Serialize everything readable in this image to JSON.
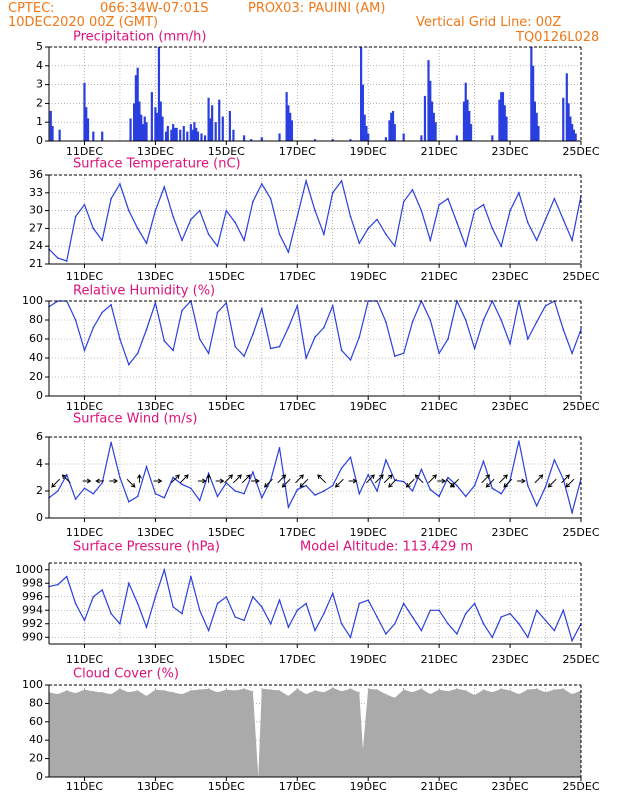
{
  "header": {
    "line1_left": "CPTEC:",
    "line1_coords": "066:34W-07:01S",
    "line1_station": "PROX03: PAUINI (AM)",
    "line2_left": "10DEC2020 00Z (GMT)",
    "line2_right": "Vertical Grid Line: 00Z",
    "line3_right": "TQ0126L028"
  },
  "colors": {
    "header": "#f07818",
    "title": "#e0107a",
    "series": "#2a3fe0",
    "cloud": "#aaaaaa",
    "grid": "#888888"
  },
  "x_tick_labels": [
    "11DEC",
    "13DEC",
    "15DEC",
    "17DEC",
    "19DEC",
    "21DEC",
    "23DEC",
    "25DEC"
  ],
  "chart_data": [
    {
      "type": "bar",
      "title": "Precipitation (mm/h)",
      "ylim": [
        0,
        5
      ],
      "yticks": [
        0,
        1,
        2,
        3,
        4,
        5
      ],
      "x": [
        10.05,
        10.1,
        10.3,
        11.0,
        11.05,
        11.1,
        11.25,
        11.5,
        12.3,
        12.4,
        12.45,
        12.5,
        12.55,
        12.6,
        12.65,
        12.7,
        12.75,
        12.9,
        13.0,
        13.05,
        13.1,
        13.15,
        13.2,
        13.3,
        13.35,
        13.45,
        13.5,
        13.55,
        13.6,
        13.7,
        13.8,
        13.9,
        14.0,
        14.05,
        14.1,
        14.15,
        14.2,
        14.3,
        14.4,
        14.5,
        14.55,
        14.6,
        14.7,
        14.8,
        14.9,
        15.1,
        15.2,
        15.5,
        15.7,
        16.0,
        16.5,
        16.7,
        16.75,
        16.8,
        16.85,
        17.5,
        18.0,
        18.5,
        18.8,
        18.85,
        18.9,
        18.95,
        19.0,
        19.5,
        19.6,
        19.65,
        19.7,
        19.75,
        20.0,
        20.5,
        20.6,
        20.7,
        20.75,
        20.8,
        20.85,
        20.9,
        21.5,
        21.7,
        21.75,
        21.8,
        21.85,
        21.9,
        22.5,
        22.7,
        22.75,
        22.8,
        22.85,
        22.9,
        23.6,
        23.65,
        23.7,
        23.75,
        23.8,
        24.5,
        24.6,
        24.65,
        24.7,
        24.75,
        24.8,
        24.85
      ],
      "values": [
        1.6,
        0.8,
        0.6,
        3.1,
        1.8,
        1.2,
        0.5,
        0.5,
        1.2,
        2.0,
        3.5,
        3.9,
        2.1,
        1.4,
        0.9,
        1.3,
        1.0,
        2.6,
        1.8,
        1.5,
        5.0,
        2.1,
        1.3,
        0.5,
        0.8,
        0.6,
        0.9,
        0.7,
        0.7,
        0.6,
        0.8,
        0.5,
        0.9,
        0.6,
        1.0,
        0.7,
        0.5,
        0.4,
        0.3,
        2.3,
        1.2,
        1.9,
        1.0,
        2.2,
        1.3,
        1.6,
        0.6,
        0.3,
        0.1,
        0.2,
        0.4,
        2.6,
        1.9,
        1.5,
        1.1,
        0.1,
        0.1,
        0.1,
        5.0,
        3.0,
        1.4,
        0.8,
        0.4,
        0.2,
        1.1,
        1.5,
        1.6,
        0.9,
        0.4,
        0.3,
        2.4,
        4.3,
        3.2,
        2.1,
        1.5,
        1.0,
        0.3,
        2.1,
        3.1,
        2.2,
        1.6,
        0.9,
        0.3,
        2.2,
        2.6,
        2.6,
        1.9,
        1.3,
        5.0,
        4.0,
        2.1,
        1.5,
        0.8,
        2.3,
        3.6,
        2.0,
        1.3,
        0.9,
        0.6,
        0.4
      ],
      "xlim": [
        10.0,
        25.0
      ]
    },
    {
      "type": "line",
      "title": "Surface Temperature (nC)",
      "ylim": [
        21,
        36
      ],
      "yticks": [
        21,
        24,
        27,
        30,
        33,
        36
      ],
      "x": [
        10.0,
        10.25,
        10.5,
        10.75,
        11.0,
        11.25,
        11.5,
        11.75,
        12.0,
        12.25,
        12.5,
        12.75,
        13.0,
        13.25,
        13.5,
        13.75,
        14.0,
        14.25,
        14.5,
        14.75,
        15.0,
        15.25,
        15.5,
        15.75,
        16.0,
        16.25,
        16.5,
        16.75,
        17.0,
        17.25,
        17.5,
        17.75,
        18.0,
        18.25,
        18.5,
        18.75,
        19.0,
        19.25,
        19.5,
        19.75,
        20.0,
        20.25,
        20.5,
        20.75,
        21.0,
        21.25,
        21.5,
        21.75,
        22.0,
        22.25,
        22.5,
        22.75,
        23.0,
        23.25,
        23.5,
        23.75,
        24.0,
        24.25,
        24.5,
        24.75,
        25.0
      ],
      "values": [
        23.5,
        22.0,
        21.5,
        29.0,
        31.0,
        27.0,
        25.0,
        32.0,
        34.5,
        30.0,
        27.0,
        24.5,
        30.0,
        34.0,
        29.0,
        25.0,
        28.5,
        30.0,
        26.0,
        24.0,
        30.0,
        28.0,
        25.0,
        31.5,
        34.5,
        32.0,
        26.0,
        23.0,
        29.0,
        35.0,
        30.0,
        26.0,
        33.0,
        35.0,
        29.0,
        24.5,
        27.0,
        28.5,
        26.0,
        24.0,
        31.5,
        33.5,
        30.0,
        25.0,
        31.0,
        32.0,
        28.0,
        24.0,
        30.0,
        31.0,
        27.0,
        24.0,
        30.0,
        33.0,
        28.0,
        25.0,
        28.5,
        32.0,
        28.5,
        25.0,
        32.5
      ],
      "xlim": [
        10.0,
        25.0
      ]
    },
    {
      "type": "line",
      "title": "Relative Humidity (%)",
      "ylim": [
        0,
        100
      ],
      "yticks": [
        0,
        20,
        40,
        60,
        80,
        100
      ],
      "x": [
        10.0,
        10.25,
        10.5,
        10.75,
        11.0,
        11.25,
        11.5,
        11.75,
        12.0,
        12.25,
        12.5,
        12.75,
        13.0,
        13.25,
        13.5,
        13.75,
        14.0,
        14.25,
        14.5,
        14.75,
        15.0,
        15.25,
        15.5,
        15.75,
        16.0,
        16.25,
        16.5,
        16.75,
        17.0,
        17.25,
        17.5,
        17.75,
        18.0,
        18.25,
        18.5,
        18.75,
        19.0,
        19.25,
        19.5,
        19.75,
        20.0,
        20.25,
        20.5,
        20.75,
        21.0,
        21.25,
        21.5,
        21.75,
        22.0,
        22.25,
        22.5,
        22.75,
        23.0,
        23.25,
        23.5,
        23.75,
        24.0,
        24.25,
        24.5,
        24.75,
        25.0
      ],
      "values": [
        94,
        100,
        100,
        80,
        48,
        72,
        88,
        96,
        60,
        33,
        45,
        70,
        98,
        58,
        48,
        90,
        100,
        60,
        45,
        88,
        98,
        52,
        42,
        65,
        92,
        50,
        52,
        72,
        95,
        40,
        62,
        72,
        95,
        48,
        38,
        62,
        100,
        100,
        78,
        42,
        45,
        78,
        100,
        80,
        45,
        60,
        100,
        80,
        50,
        80,
        100,
        80,
        55,
        100,
        60,
        78,
        95,
        100,
        70,
        45,
        70
      ],
      "xlim": [
        10.0,
        25.0
      ]
    },
    {
      "type": "line",
      "title": "Surface Wind (m/s)",
      "ylim": [
        0,
        6
      ],
      "yticks": [
        0,
        2,
        4,
        6
      ],
      "x": [
        10.0,
        10.25,
        10.5,
        10.75,
        11.0,
        11.25,
        11.5,
        11.75,
        12.0,
        12.25,
        12.5,
        12.75,
        13.0,
        13.25,
        13.5,
        13.75,
        14.0,
        14.25,
        14.5,
        14.75,
        15.0,
        15.25,
        15.5,
        15.75,
        16.0,
        16.25,
        16.5,
        16.75,
        17.0,
        17.25,
        17.5,
        17.75,
        18.0,
        18.25,
        18.5,
        18.75,
        19.0,
        19.25,
        19.5,
        19.75,
        20.0,
        20.25,
        20.5,
        20.75,
        21.0,
        21.25,
        21.5,
        21.75,
        22.0,
        22.25,
        22.5,
        22.75,
        23.0,
        23.25,
        23.5,
        23.75,
        24.0,
        24.25,
        24.5,
        24.75,
        25.0
      ],
      "values": [
        1.5,
        2.0,
        3.2,
        1.4,
        2.2,
        1.8,
        2.6,
        5.6,
        3.0,
        1.2,
        1.6,
        3.8,
        1.8,
        1.5,
        3.0,
        2.5,
        2.2,
        1.3,
        3.3,
        1.6,
        2.6,
        2.0,
        1.8,
        3.4,
        1.5,
        2.8,
        5.2,
        0.8,
        2.1,
        2.4,
        1.7,
        2.0,
        2.4,
        3.7,
        4.5,
        1.8,
        3.2,
        2.0,
        4.3,
        2.8,
        2.7,
        2.0,
        3.6,
        2.1,
        1.6,
        3.0,
        2.4,
        1.6,
        2.4,
        4.2,
        2.2,
        1.8,
        2.8,
        5.7,
        2.4,
        0.9,
        2.3,
        4.3,
        2.9,
        0.4,
        2.9
      ],
      "xlim": [
        10.0,
        25.0
      ]
    },
    {
      "type": "line",
      "title": "Surface Pressure (hPa)",
      "annotation": "Model Altitude: 113.429 m",
      "ylim": [
        989,
        1001
      ],
      "yticks": [
        990,
        992,
        994,
        996,
        998,
        1000
      ],
      "x": [
        10.0,
        10.25,
        10.5,
        10.75,
        11.0,
        11.25,
        11.5,
        11.75,
        12.0,
        12.25,
        12.5,
        12.75,
        13.0,
        13.25,
        13.5,
        13.75,
        14.0,
        14.25,
        14.5,
        14.75,
        15.0,
        15.25,
        15.5,
        15.75,
        16.0,
        16.25,
        16.5,
        16.75,
        17.0,
        17.25,
        17.5,
        17.75,
        18.0,
        18.25,
        18.5,
        18.75,
        19.0,
        19.25,
        19.5,
        19.75,
        20.0,
        20.25,
        20.5,
        20.75,
        21.0,
        21.25,
        21.5,
        21.75,
        22.0,
        22.25,
        22.5,
        22.75,
        23.0,
        23.25,
        23.5,
        23.75,
        24.0,
        24.25,
        24.5,
        24.75,
        25.0
      ],
      "values": [
        997.5,
        997.8,
        999.0,
        995.0,
        992.5,
        996.0,
        997.0,
        993.5,
        992.0,
        998.0,
        995.0,
        991.5,
        996.0,
        1000.0,
        994.5,
        993.5,
        999.0,
        994.0,
        991.0,
        995.0,
        996.0,
        993.0,
        992.5,
        996.0,
        994.5,
        992.0,
        995.5,
        991.5,
        994.0,
        995.0,
        991.0,
        993.5,
        996.5,
        992.0,
        990.0,
        995.0,
        995.5,
        993.0,
        990.5,
        992.0,
        995.0,
        993.0,
        991.0,
        994.0,
        994.0,
        992.0,
        990.5,
        993.5,
        995.0,
        992.0,
        990.0,
        993.0,
        993.5,
        992.0,
        990.0,
        994.0,
        992.5,
        991.0,
        994.0,
        989.5,
        992.0
      ],
      "xlim": [
        10.0,
        25.0
      ]
    },
    {
      "type": "area",
      "title": "Cloud Cover (%)",
      "ylim": [
        0,
        100
      ],
      "yticks": [
        0,
        20,
        40,
        60,
        80,
        100
      ],
      "x": [
        10.0,
        10.25,
        10.5,
        10.75,
        11.0,
        11.25,
        11.5,
        11.75,
        12.0,
        12.25,
        12.5,
        12.75,
        13.0,
        13.25,
        13.5,
        13.75,
        14.0,
        14.25,
        14.5,
        14.75,
        15.0,
        15.25,
        15.5,
        15.75,
        15.9,
        16.0,
        16.25,
        16.5,
        16.75,
        17.0,
        17.25,
        17.5,
        17.75,
        18.0,
        18.25,
        18.5,
        18.75,
        18.85,
        19.0,
        19.25,
        19.5,
        19.75,
        20.0,
        20.25,
        20.5,
        20.75,
        21.0,
        21.25,
        21.5,
        21.75,
        22.0,
        22.25,
        22.5,
        22.75,
        23.0,
        23.25,
        23.5,
        23.75,
        24.0,
        24.25,
        24.5,
        24.75,
        25.0
      ],
      "values": [
        92,
        90,
        94,
        91,
        95,
        93,
        92,
        90,
        96,
        92,
        94,
        88,
        95,
        94,
        92,
        90,
        94,
        95,
        96,
        92,
        95,
        94,
        96,
        93,
        0,
        96,
        95,
        94,
        88,
        96,
        90,
        94,
        92,
        97,
        93,
        96,
        92,
        30,
        96,
        95,
        90,
        86,
        95,
        92,
        96,
        90,
        95,
        93,
        96,
        94,
        89,
        95,
        92,
        96,
        94,
        90,
        95,
        96,
        92,
        95,
        96,
        90,
        94
      ],
      "xlim": [
        10.0,
        25.0
      ]
    }
  ],
  "wind_vectors": {
    "x": [
      10.25,
      10.55,
      11.0,
      11.5,
      11.75,
      12.25,
      12.55,
      13.0,
      13.5,
      13.75,
      14.25,
      14.5,
      14.75,
      15.0,
      15.25,
      15.5,
      15.75,
      16.25,
      16.5,
      16.75,
      17.0,
      17.25,
      17.75,
      18.25,
      18.5,
      19.0,
      19.25,
      19.5,
      19.75,
      20.25,
      20.5,
      20.75,
      21.0,
      21.25,
      21.5,
      22.25,
      22.5,
      22.75,
      23.0,
      23.25,
      23.75,
      24.25,
      24.5,
      24.75
    ],
    "u": [
      -1,
      -1,
      1,
      -1,
      1,
      1,
      0,
      1,
      1,
      1,
      1,
      0,
      1,
      1,
      1,
      1,
      1,
      -1,
      1,
      -1,
      1,
      -1,
      -1,
      -1,
      1,
      1,
      1,
      1,
      -1,
      -1,
      -1,
      1,
      1,
      1,
      -1,
      1,
      -1,
      1,
      -1,
      1,
      1,
      -1,
      1,
      -1
    ],
    "v": [
      -1,
      1,
      0,
      0,
      0,
      -1,
      1,
      0,
      1,
      1,
      0,
      1,
      0,
      1,
      1,
      1,
      0,
      -1,
      1,
      -1,
      1,
      -1,
      1,
      -1,
      0,
      1,
      1,
      1,
      -1,
      -1,
      1,
      1,
      0,
      -1,
      -1,
      1,
      -1,
      1,
      -1,
      0,
      1,
      -1,
      1,
      -1
    ]
  }
}
